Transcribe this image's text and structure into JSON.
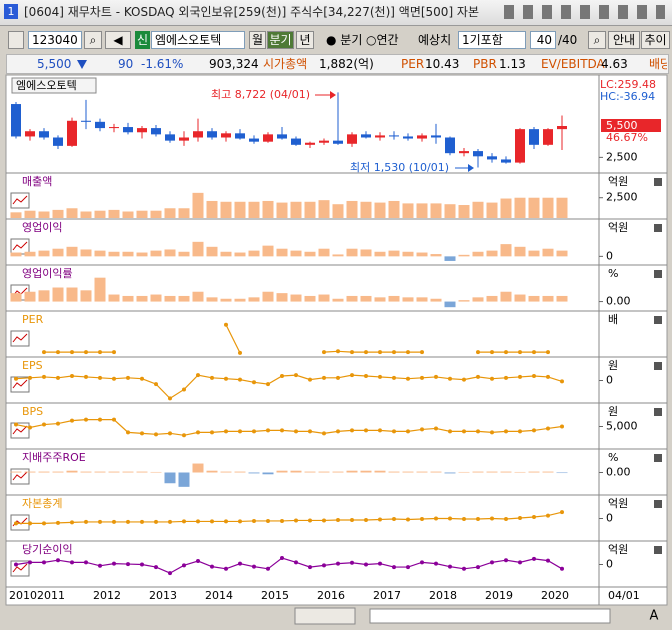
{
  "window": {
    "icon": "1",
    "title": "[0604] 재무차트 - KOSDAQ 외국인보유[259(천)] 주식수[34,227(천)] 액면[500] 자본"
  },
  "toolbar": {
    "code": "123040",
    "badge": "신",
    "name": "엠에스오토텍",
    "periods": [
      "월",
      "분기",
      "년"
    ],
    "radios": [
      "분기",
      "연간"
    ],
    "estimate_label": "예상치",
    "estimate": "1기포함",
    "count": "40",
    "total": "/40",
    "buttons": [
      "안내",
      "추이"
    ]
  },
  "info": {
    "price": "5,500",
    "change": "90",
    "rate": "-1.61%",
    "volume": "903,324",
    "cap_label": "시가총액",
    "cap": "1,882(억)",
    "per_label": "PER",
    "per": "10.43",
    "pbr_label": "PBR",
    "pbr": "1.13",
    "ev_label": "EV/EBITDA",
    "ev": "4.63",
    "div_label": "배당"
  },
  "price_chart": {
    "label": "엠에스오토텍",
    "lc": "LC:259.48",
    "hc": "HC:-36.94",
    "last": "5,500",
    "last_rate": "46.67%",
    "high_note": "최고 8,722 (04/01)",
    "low_note": "최저 1,530 (10/01)",
    "up_color": "#e8262a",
    "down_color": "#1f5fd0",
    "ylim": [
      1100,
      9900
    ],
    "yticks": [
      {
        "value": 2500,
        "label": "2,500"
      }
    ],
    "candles": {
      "open": [
        7600,
        4500,
        5000,
        4400,
        3600,
        6000,
        5900,
        5300,
        5400,
        4900,
        5300,
        4700,
        4100,
        4400,
        5000,
        4400,
        4800,
        4300,
        4000,
        4700,
        4300,
        3700,
        3900,
        4100,
        3800,
        4700,
        4400,
        4600,
        4500,
        4300,
        4600,
        4400,
        2900,
        3100,
        2600,
        2300,
        2000,
        5200,
        3700,
        5200
      ],
      "high": [
        7800,
        5200,
        5300,
        4600,
        6300,
        8000,
        6200,
        5700,
        5800,
        5500,
        5600,
        5000,
        5000,
        6200,
        5300,
        5000,
        5200,
        4600,
        4900,
        5400,
        4500,
        4000,
        4300,
        8722,
        4900,
        5000,
        4900,
        5000,
        4800,
        4800,
        5700,
        4500,
        3400,
        3300,
        2900,
        2600,
        5300,
        5400,
        5300,
        6500
      ],
      "low": [
        4300,
        4100,
        4200,
        3300,
        3500,
        5200,
        5000,
        4900,
        4700,
        4300,
        4500,
        3900,
        3600,
        4000,
        4200,
        4000,
        4200,
        3800,
        3900,
        4200,
        3600,
        3400,
        3700,
        3700,
        3500,
        4300,
        4100,
        4200,
        4100,
        4000,
        3800,
        2700,
        2600,
        1530,
        2000,
        1900,
        1900,
        3300,
        3600,
        3200
      ],
      "close": [
        4500,
        5000,
        4400,
        3600,
        6000,
        5900,
        5300,
        5400,
        4900,
        5300,
        4700,
        4100,
        4400,
        5000,
        4400,
        4800,
        4300,
        4000,
        4700,
        4300,
        3700,
        3900,
        4100,
        3800,
        4700,
        4400,
        4600,
        4500,
        4300,
        4600,
        4400,
        2900,
        3100,
        2600,
        2300,
        2000,
        5200,
        3700,
        5200,
        5500
      ]
    }
  },
  "panels": [
    {
      "title": "매출액",
      "unit": "억원",
      "kind": "bar",
      "title_color": "#800080",
      "color": "#f8b98a",
      "negative_color": "#7ba6d8",
      "ylim": [
        0,
        5300
      ],
      "yticks": [
        {
          "value": 2500,
          "label": "2,500"
        }
      ],
      "values": [
        700,
        900,
        800,
        1000,
        1200,
        800,
        900,
        1000,
        800,
        900,
        900,
        1200,
        1200,
        3100,
        2100,
        2000,
        2000,
        2000,
        2100,
        1900,
        2000,
        2000,
        2200,
        1700,
        2100,
        2000,
        1900,
        2100,
        1800,
        1800,
        1800,
        1700,
        1600,
        2000,
        1900,
        2400,
        2500,
        2500,
        2500,
        2500
      ]
    },
    {
      "title": "영업이익",
      "unit": "억원",
      "kind": "bar",
      "title_color": "#800080",
      "color": "#f8b98a",
      "negative_color": "#7ba6d8",
      "ylim": [
        -200,
        925
      ],
      "yticks": [
        0
      ],
      "values": [
        100,
        120,
        150,
        200,
        250,
        180,
        150,
        120,
        120,
        100,
        150,
        180,
        120,
        380,
        250,
        120,
        100,
        150,
        280,
        200,
        150,
        120,
        200,
        50,
        200,
        180,
        120,
        150,
        120,
        100,
        60,
        -120,
        40,
        120,
        150,
        320,
        250,
        150,
        200,
        150
      ]
    },
    {
      "title": "영업이익률",
      "unit": "%",
      "kind": "bar",
      "title_color": "#800080",
      "color": "#f8b98a",
      "negative_color": "#7ba6d8",
      "ylim": [
        -3,
        12.3
      ],
      "yticks": [
        {
          "value": 0,
          "label": "0.00"
        }
      ],
      "values": [
        3,
        3.5,
        4,
        5,
        5,
        4,
        8.5,
        2.5,
        2,
        2,
        2.5,
        2,
        2,
        3.5,
        1.5,
        1,
        1,
        1.5,
        3.5,
        3,
        2.5,
        2,
        2.5,
        1,
        2,
        2,
        1.5,
        2,
        1.5,
        1.5,
        1,
        -2,
        0.5,
        1.5,
        2,
        3.5,
        2.5,
        2,
        2,
        2
      ]
    },
    {
      "title": "PER",
      "unit": "배",
      "kind": "line",
      "title_color": "#e8960a",
      "color": "#e8960a",
      "ylim": [
        0,
        55
      ],
      "yticks": [],
      "values": [
        null,
        null,
        5,
        5,
        5,
        5,
        5,
        5,
        null,
        null,
        null,
        null,
        null,
        null,
        null,
        40,
        4,
        null,
        null,
        null,
        null,
        null,
        5,
        6,
        5,
        5,
        5,
        5,
        5,
        5,
        null,
        null,
        null,
        5,
        5,
        5,
        5,
        5,
        5,
        null
      ]
    },
    {
      "title": "EPS",
      "unit": "원",
      "kind": "line",
      "title_color": "#e8960a",
      "color": "#e8960a",
      "ylim": [
        -1200,
        1200
      ],
      "yticks": [
        0
      ],
      "values": [
        100,
        150,
        200,
        150,
        250,
        200,
        150,
        100,
        150,
        100,
        -200,
        -1000,
        -500,
        300,
        150,
        100,
        50,
        -100,
        -200,
        250,
        300,
        50,
        150,
        150,
        300,
        250,
        200,
        150,
        100,
        150,
        200,
        100,
        50,
        200,
        100,
        150,
        200,
        250,
        200,
        -50
      ]
    },
    {
      "title": "BPS",
      "unit": "원",
      "kind": "line",
      "title_color": "#e8960a",
      "color": "#e8960a",
      "ylim": [
        2800,
        7200
      ],
      "yticks": [
        {
          "value": 5000,
          "label": "5,000"
        }
      ],
      "values": [
        5200,
        4900,
        5200,
        5300,
        5600,
        5700,
        5700,
        5700,
        4400,
        4300,
        4200,
        4300,
        4100,
        4400,
        4400,
        4500,
        4500,
        4500,
        4600,
        4600,
        4500,
        4500,
        4300,
        4500,
        4600,
        4600,
        4600,
        4500,
        4500,
        4700,
        4800,
        4500,
        4500,
        4500,
        4400,
        4500,
        4500,
        4600,
        4800,
        5000
      ]
    },
    {
      "title": "지배주주ROE",
      "unit": "%",
      "kind": "bar",
      "title_color": "#800080",
      "color": "#f8b98a",
      "negative_color": "#7ba6d8",
      "ylim": [
        -12,
        12
      ],
      "yticks": [
        {
          "value": 0,
          "label": "0.00"
        }
      ],
      "values": [
        0.5,
        0.5,
        0.5,
        0.5,
        1,
        0.5,
        0.5,
        0.5,
        0.5,
        0.5,
        0.3,
        -6,
        -8,
        5,
        1,
        0.5,
        0.5,
        -0.5,
        -1,
        1,
        1,
        0.5,
        0.5,
        0.5,
        1,
        1,
        1,
        0.5,
        0.5,
        0.5,
        0.5,
        -0.5,
        0.3,
        0.5,
        0.5,
        0.5,
        0.3,
        0.5,
        0.5,
        -0.3
      ]
    },
    {
      "title": "자본총계",
      "unit": "억원",
      "kind": "line",
      "title_color": "#e8960a",
      "color": "#e8960a",
      "ylim": [
        -2200,
        2200
      ],
      "yticks": [
        0
      ],
      "values": [
        -500,
        -500,
        -500,
        -450,
        -400,
        -350,
        -350,
        -350,
        -350,
        -350,
        -350,
        -350,
        -300,
        -300,
        -300,
        -300,
        -300,
        -250,
        -250,
        -250,
        -200,
        -200,
        -200,
        -150,
        -150,
        -150,
        -100,
        -50,
        -100,
        -50,
        0,
        0,
        -50,
        -50,
        0,
        -50,
        50,
        150,
        300,
        650
      ]
    },
    {
      "title": "당기순이익",
      "unit": "억원",
      "kind": "line",
      "title_color": "#800080",
      "color": "#8b0099",
      "ylim": [
        -500,
        500
      ],
      "yticks": [
        0
      ],
      "values": [
        0,
        50,
        50,
        100,
        50,
        50,
        -30,
        20,
        10,
        0,
        -60,
        -200,
        -20,
        80,
        -50,
        -100,
        20,
        -50,
        -100,
        150,
        50,
        -60,
        -20,
        20,
        40,
        0,
        20,
        -60,
        -60,
        50,
        20,
        -50,
        -100,
        -60,
        50,
        100,
        50,
        130,
        90,
        -100
      ]
    }
  ],
  "x_axis": {
    "labels": [
      "2010",
      "2011",
      "2012",
      "2013",
      "2014",
      "2015",
      "2016",
      "2017",
      "2018",
      "2019",
      "2020"
    ],
    "last": "04/01"
  },
  "bottom": {
    "font_button": "A"
  }
}
